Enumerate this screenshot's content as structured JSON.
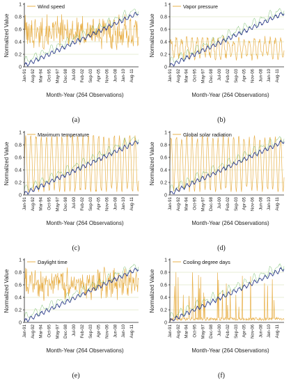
{
  "figure": {
    "ylabel": "Normalized Value",
    "xlabel": "Month-Year (264 Observations)",
    "x_tick_labels": [
      "Jan-91",
      "Aug-92",
      "Mar-94",
      "Oct-95",
      "May-97",
      "Dec-98",
      "Jul-00",
      "Feb-02",
      "Sep-03",
      "Apr-05",
      "Nov-06",
      "Jun-08",
      "Jan-10",
      "Aug-11"
    ],
    "y_tick_labels": [
      "0",
      "0.2",
      "0.4",
      "0.6",
      "0.8",
      "1"
    ],
    "colors": {
      "variable_series": "#E8B04A",
      "trend_series": "#2F3E8C",
      "trend_secondary": "#5BB04C",
      "red_accent": "#D2453A",
      "gridline": "#DFE7C7",
      "axis": "#222222"
    }
  },
  "chart_data": [
    {
      "panel": "(a)",
      "type": "line",
      "xlabel": "Month-Year (264 Observations)",
      "ylabel": "Normalized Value",
      "ylim": [
        0,
        1
      ],
      "legend": "top-left",
      "grid": true,
      "x_tick_labels": [
        "Jan-91",
        "Aug-92",
        "Mar-94",
        "Oct-95",
        "May-97",
        "Dec-98",
        "Jul-00",
        "Feb-02",
        "Sep-03",
        "Apr-05",
        "Nov-06",
        "Jun-08",
        "Jan-10",
        "Aug-11"
      ],
      "series": [
        {
          "name": "Wind speed",
          "color": "#E8B04A",
          "style": "noisy",
          "mean": 0.55,
          "amplitude": 0.22,
          "min": 0.0,
          "max": 1.0
        },
        {
          "color": "#2F3E8C",
          "style": "trend",
          "start": 0.02,
          "end": 0.86
        }
      ]
    },
    {
      "panel": "(b)",
      "type": "line",
      "xlabel": "Month-Year (264 Observations)",
      "ylabel": "Normalized Value",
      "ylim": [
        0,
        1
      ],
      "legend": "top-left",
      "grid": true,
      "x_tick_labels": [
        "Jan-91",
        "Aug-92",
        "Mar-94",
        "Oct-95",
        "May-97",
        "Dec-98",
        "Jul-00",
        "Feb-02",
        "Sep-03",
        "Apr-05",
        "Nov-06",
        "Jun-08",
        "Jan-10",
        "Aug-11"
      ],
      "series": [
        {
          "name": "Vapor pressure",
          "color": "#E8B04A",
          "style": "seasonal",
          "mean": 0.3,
          "amplitude": 0.14,
          "min": 0.0,
          "max": 0.95
        },
        {
          "color": "#2F3E8C",
          "style": "trend",
          "start": 0.02,
          "end": 0.86
        }
      ]
    },
    {
      "panel": "(c)",
      "type": "line",
      "xlabel": "Month-Year (264 Observations)",
      "ylabel": "Normalized Value",
      "ylim": [
        0,
        1
      ],
      "legend": "top-left",
      "grid": true,
      "x_tick_labels": [
        "Jan-91",
        "Aug-92",
        "Mar-94",
        "Oct-95",
        "May-97",
        "Dec-98",
        "Jul-00",
        "Feb-02",
        "Sep-03",
        "Apr-05",
        "Nov-06",
        "Jun-08",
        "Jan-10",
        "Aug-11"
      ],
      "series": [
        {
          "name": "Maximum temperature",
          "color": "#E8B04A",
          "style": "seasonal",
          "mean": 0.5,
          "amplitude": 0.45,
          "min": 0.05,
          "max": 0.95
        },
        {
          "color": "#2F3E8C",
          "style": "trend",
          "start": 0.02,
          "end": 0.86
        }
      ]
    },
    {
      "panel": "(d)",
      "type": "line",
      "xlabel": "Month-Year (264 Observations)",
      "ylabel": "Normalized Value",
      "ylim": [
        0,
        1
      ],
      "legend": "top-left",
      "grid": true,
      "x_tick_labels": [
        "Jan-91",
        "Aug-92",
        "Mar-94",
        "Oct-95",
        "May-97",
        "Dec-98",
        "Jul-00",
        "Feb-02",
        "Sep-03",
        "Apr-05",
        "Nov-06",
        "Jun-08",
        "Jan-10",
        "Aug-11"
      ],
      "series": [
        {
          "name": "Global solar radiation",
          "color": "#E8B04A",
          "style": "seasonal",
          "mean": 0.5,
          "amplitude": 0.42,
          "min": 0.05,
          "max": 0.95
        },
        {
          "color": "#2F3E8C",
          "style": "trend",
          "start": 0.02,
          "end": 0.86
        }
      ]
    },
    {
      "panel": "(e)",
      "type": "line",
      "xlabel": "Month-Year (264 Observations)",
      "ylabel": "Normalized Value",
      "ylim": [
        0,
        1
      ],
      "legend": "top-left",
      "grid": true,
      "x_tick_labels": [
        "Jan-91",
        "Aug-92",
        "Mar-94",
        "Oct-95",
        "May-97",
        "Dec-98",
        "Jul-00",
        "Feb-02",
        "Sep-03",
        "Apr-05",
        "Nov-06",
        "Jun-08",
        "Jan-10",
        "Aug-11"
      ],
      "series": [
        {
          "name": "Daylight time",
          "color": "#E8B04A",
          "style": "noisy",
          "mean": 0.62,
          "amplitude": 0.2,
          "min": 0.0,
          "max": 1.0
        },
        {
          "color": "#2F3E8C",
          "style": "trend",
          "start": 0.02,
          "end": 0.86
        }
      ]
    },
    {
      "panel": "(f)",
      "type": "line",
      "xlabel": "Month-Year (264 Observations)",
      "ylabel": "Normalized Value",
      "ylim": [
        0,
        1
      ],
      "legend": "top-left",
      "grid": true,
      "x_tick_labels": [
        "Jan-91",
        "Aug-92",
        "Mar-94",
        "Oct-95",
        "May-97",
        "Dec-98",
        "Jul-00",
        "Feb-02",
        "Sep-03",
        "Apr-05",
        "Nov-06",
        "Jun-08",
        "Jan-10",
        "Aug-11"
      ],
      "series": [
        {
          "name": "Cooling degree days",
          "color": "#E8B04A",
          "style": "spiky",
          "mean": 0.03,
          "amplitude": 0.6,
          "min": 0.0,
          "max": 1.0
        },
        {
          "color": "#2F3E8C",
          "style": "trend",
          "start": 0.02,
          "end": 0.86
        }
      ]
    }
  ]
}
